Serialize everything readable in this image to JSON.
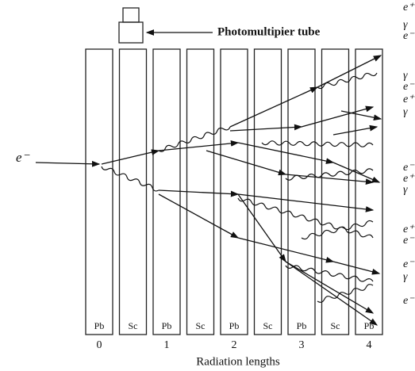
{
  "callout": {
    "label": "Photomultipier tube"
  },
  "incoming_particle": "e⁻",
  "layers": [
    "Pb",
    "Sc",
    "Pb",
    "Sc",
    "Pb",
    "Sc",
    "Pb",
    "Sc",
    "Pb"
  ],
  "axis": {
    "ticks": [
      "0",
      "1",
      "2",
      "3",
      "4"
    ],
    "label": "Radiation lengths"
  },
  "outgoing_particles": [
    "e⁺",
    "γ",
    "e⁻",
    "γ",
    "e⁻",
    "e⁺",
    "γ",
    "e⁻",
    "e⁺",
    "γ",
    "e⁺",
    "e⁻",
    "e⁻",
    "γ",
    "e⁻"
  ]
}
